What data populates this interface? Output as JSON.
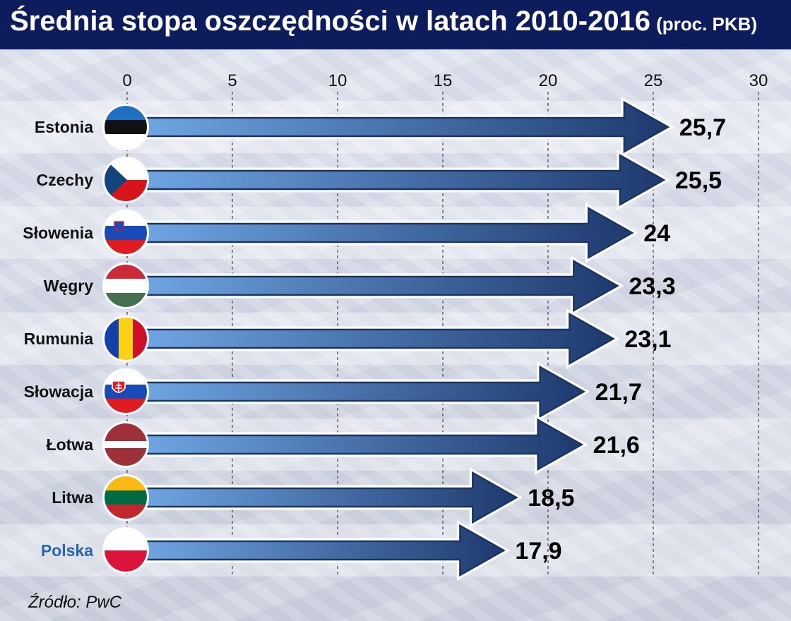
{
  "header": {
    "title": "Średnia stopa oszczędności w latach 2010-2016",
    "subtitle": "(proc. PKB)"
  },
  "source": "Źródło: PwC",
  "colors": {
    "header_bg": "#0c1c5c",
    "arrow_dark": "#1e3a6e",
    "arrow_light": "#6fa5e2",
    "highlight_label": "#2a63b0"
  },
  "chart_data": {
    "type": "bar",
    "orientation": "horizontal",
    "title": "Średnia stopa oszczędności w latach 2010-2016 (proc. PKB)",
    "xlim": [
      0,
      30
    ],
    "ticks": [
      "0",
      "5",
      "10",
      "15",
      "20",
      "25",
      "30"
    ],
    "tick_values": [
      0,
      5,
      10,
      15,
      20,
      25,
      30
    ],
    "grid": "vertical dashed",
    "categories": [
      "Estonia",
      "Czechy",
      "Słowenia",
      "Węgry",
      "Rumunia",
      "Słowacja",
      "Łotwa",
      "Litwa",
      "Polska"
    ],
    "values": [
      25.7,
      25.5,
      24,
      23.3,
      23.1,
      21.7,
      21.6,
      18.5,
      17.9
    ],
    "value_labels": [
      "25,7",
      "25,5",
      "24",
      "23,3",
      "23,1",
      "21,7",
      "21,6",
      "18,5",
      "17,9"
    ],
    "flags": [
      "estonia-flag-icon",
      "czech-flag-icon",
      "slovenia-flag-icon",
      "hungary-flag-icon",
      "romania-flag-icon",
      "slovakia-flag-icon",
      "latvia-flag-icon",
      "lithuania-flag-icon",
      "poland-flag-icon"
    ],
    "highlight": "Polska"
  }
}
